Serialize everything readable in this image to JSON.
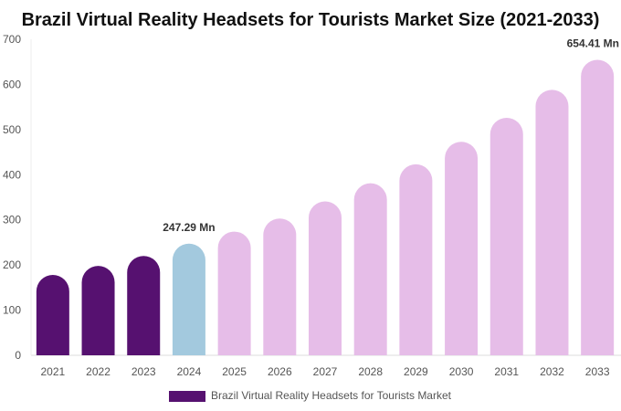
{
  "chart_data": {
    "type": "bar",
    "title": "Brazil Virtual Reality Headsets for Tourists Market Size (2021-2033)",
    "categories": [
      "2021",
      "2022",
      "2023",
      "2024",
      "2025",
      "2026",
      "2027",
      "2028",
      "2029",
      "2030",
      "2031",
      "2032",
      "2033"
    ],
    "series": [
      {
        "name": "Brazil Virtual Reality Headsets for Tourists Market",
        "values": [
          178,
          198,
          220,
          247.29,
          274,
          303,
          341,
          381,
          423,
          473,
          526,
          588,
          654.41
        ]
      }
    ],
    "data_labels": [
      {
        "index": 3,
        "text": "247.29 Mn"
      },
      {
        "index": 12,
        "text": "654.41 Mn"
      }
    ],
    "ylim": [
      0,
      700
    ],
    "yticks": [
      "0",
      "100",
      "200",
      "300",
      "400",
      "500",
      "600",
      "700"
    ],
    "colors": {
      "historical": "#561170",
      "base_year": "#a3c9de",
      "forecast": "#e6bde8",
      "legend": "#561170"
    },
    "legend_position": "bottom",
    "grid": false
  }
}
